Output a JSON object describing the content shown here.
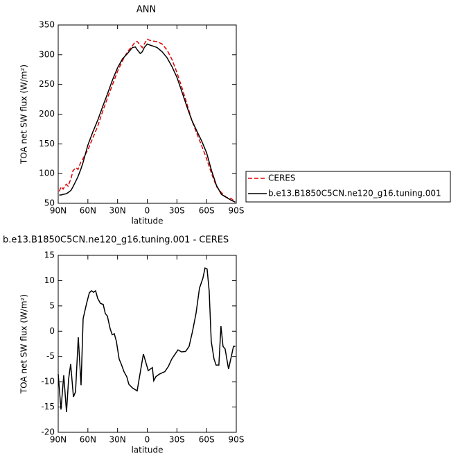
{
  "chart_data": [
    {
      "type": "line",
      "title": "ANN",
      "xlabel": "latitude",
      "ylabel": "TOA net SW flux (W/m²)",
      "x": [
        89,
        87,
        85,
        82,
        80,
        77,
        75,
        72,
        70,
        67,
        65,
        60,
        55,
        50,
        45,
        40,
        35,
        30,
        25,
        20,
        15,
        12,
        10,
        7,
        5,
        3,
        0,
        -3,
        -5,
        -10,
        -15,
        -20,
        -25,
        -30,
        -35,
        -40,
        -45,
        -50,
        -55,
        -60,
        -65,
        -70,
        -75,
        -80,
        -85,
        -89
      ],
      "series": [
        {
          "name": "CERES",
          "color": "#e00000",
          "dashed": true,
          "values": [
            70,
            78,
            74,
            82,
            79,
            92,
            105,
            110,
            107,
            120,
            125,
            140,
            160,
            180,
            205,
            228,
            250,
            272,
            290,
            305,
            315,
            322,
            322,
            316,
            312,
            318,
            326,
            324,
            323,
            322,
            318,
            308,
            292,
            270,
            245,
            218,
            190,
            168,
            147,
            125,
            100,
            78,
            68,
            60,
            58,
            52
          ]
        },
        {
          "name": "b.e13.B1850C5CN.ne120_g16.tuning.001",
          "color": "#000000",
          "dashed": false,
          "values": [
            64,
            64,
            65,
            66,
            68,
            72,
            78,
            88,
            95,
            108,
            118,
            148,
            170,
            190,
            213,
            235,
            258,
            278,
            293,
            302,
            312,
            313,
            308,
            302,
            305,
            312,
            318,
            316,
            315,
            312,
            305,
            295,
            280,
            262,
            238,
            213,
            190,
            172,
            155,
            135,
            105,
            80,
            65,
            60,
            55,
            52
          ]
        }
      ],
      "xlim": [
        90,
        -90
      ],
      "xticks": [
        {
          "value": 90,
          "label": "90N"
        },
        {
          "value": 60,
          "label": "60N"
        },
        {
          "value": 30,
          "label": "30N"
        },
        0,
        {
          "value": -30,
          "label": "30S"
        },
        {
          "value": -60,
          "label": "60S"
        },
        {
          "value": -90,
          "label": "90S"
        }
      ],
      "ylim": [
        50,
        350
      ],
      "yticks": [
        50,
        100,
        150,
        200,
        250,
        300,
        350
      ],
      "legend": "right"
    },
    {
      "type": "line",
      "title": "b.e13.B1850C5CN.ne120_g16.tuning.001 - CERES",
      "xlabel": "latitude",
      "ylabel": "TOA net SW flux (W/m²)",
      "x": [
        90,
        87.2,
        84.4,
        81.6,
        79.5,
        77.4,
        74.6,
        72.5,
        69.7,
        66.9,
        64.8,
        61.3,
        58.5,
        56.4,
        54.3,
        52.2,
        50.1,
        47.3,
        44.5,
        42.4,
        40.3,
        37.5,
        35.4,
        33.3,
        31.2,
        28.4,
        26.3,
        23.5,
        20.7,
        18.6,
        15.1,
        10.2,
        3.9,
        -1.0,
        -3.1,
        -5.2,
        -6.6,
        -8.7,
        -12.2,
        -17.8,
        -21.3,
        -24.8,
        -28.3,
        -31.1,
        -34.6,
        -38.8,
        -42.3,
        -45.8,
        -49.3,
        -52.8,
        -56.3,
        -58.4,
        -60.5,
        -62.6,
        -64.7,
        -67.5,
        -69.6,
        -72.4,
        -74.5,
        -76.6,
        -78.7,
        -82.2,
        -85,
        -87.2,
        -89
      ],
      "values": [
        -8.5,
        -15.5,
        -8.7,
        -16,
        -9.5,
        -6.5,
        -13,
        -12,
        -1.2,
        -10.7,
        2.5,
        5.5,
        7.6,
        8,
        7.7,
        8,
        6.5,
        5.5,
        5.3,
        3.5,
        3,
        0.5,
        -0.7,
        -0.5,
        -2,
        -5.5,
        -6.5,
        -8,
        -9,
        -10.5,
        -11.2,
        -11.8,
        -4.5,
        -7.8,
        -7.5,
        -7.2,
        -9.8,
        -9,
        -8.5,
        -8,
        -7,
        -5.5,
        -4.5,
        -3.7,
        -4.1,
        -4,
        -3,
        0,
        3.5,
        8.5,
        10.5,
        12.5,
        12.3,
        8,
        -2,
        -5.5,
        -6.7,
        -6.7,
        1,
        -3,
        -3.5,
        -7.5,
        -5,
        -3,
        -3
      ],
      "color": "#000000",
      "xlim": [
        90,
        -90
      ],
      "xticks": [
        {
          "value": 90,
          "label": "90N"
        },
        {
          "value": 60,
          "label": "60N"
        },
        {
          "value": 30,
          "label": "30N"
        },
        0,
        {
          "value": -30,
          "label": "30S"
        },
        {
          "value": -60,
          "label": "60S"
        },
        {
          "value": -90,
          "label": "90S"
        }
      ],
      "ylim": [
        -20,
        15
      ],
      "yticks": [
        -20,
        -15,
        -10,
        -5,
        0,
        5,
        10,
        15
      ]
    }
  ]
}
